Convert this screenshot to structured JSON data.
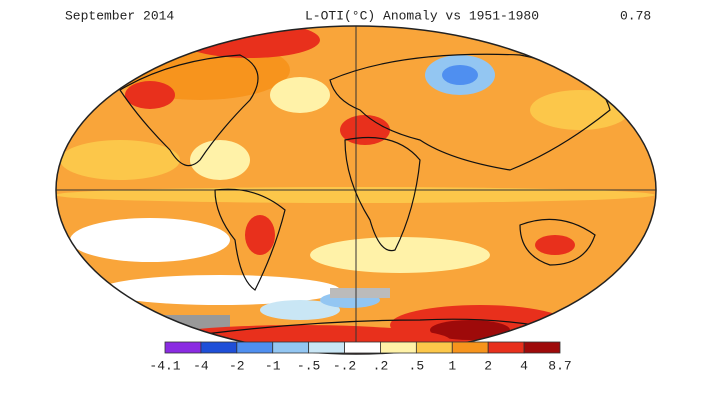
{
  "header": {
    "date": "September 2014",
    "title": "L-OTI(°C) Anomaly vs 1951-1980",
    "global_mean": "0.78"
  },
  "legend": {
    "labels": [
      "-4.1",
      "-4",
      "-2",
      "-1",
      "-.5",
      "-.2",
      ".2",
      ".5",
      "1",
      "2",
      "4",
      "8.7"
    ],
    "colors": [
      "#8a2be2",
      "#1f4fd8",
      "#4f8ff0",
      "#93c6f2",
      "#c9e6f5",
      "#ffffff",
      "#fff2a8",
      "#fcc74a",
      "#f7941d",
      "#e8301c",
      "#9e0a0a"
    ]
  }
}
